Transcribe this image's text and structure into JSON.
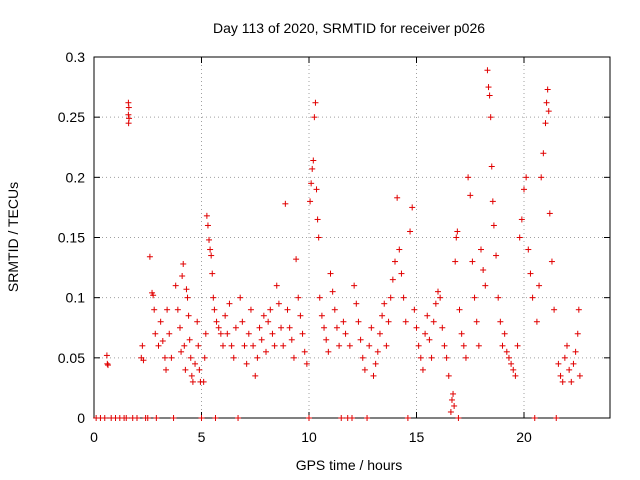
{
  "chart_data": {
    "type": "scatter",
    "title": "Day 113 of 2020, SRMTID for receiver p026",
    "xlabel": "GPS time / hours",
    "ylabel": "SRMTID / TECUs",
    "xlim": [
      0,
      24
    ],
    "ylim": [
      0,
      0.3
    ],
    "xticks": [
      0,
      5,
      10,
      15,
      20
    ],
    "xtick_labels": [
      "0",
      "5",
      "10",
      "15",
      "20"
    ],
    "yticks": [
      0,
      0.05,
      0.1,
      0.15,
      0.2,
      0.25,
      0.3
    ],
    "ytick_labels": [
      "0",
      "0.05",
      "0.1",
      "0.15",
      "0.2",
      "0.25",
      "0.3"
    ],
    "grid": true,
    "marker": "+",
    "color": "#e00000",
    "series": [
      {
        "name": "p026",
        "points": [
          [
            0.1,
            0
          ],
          [
            0.3,
            0
          ],
          [
            0.5,
            0
          ],
          [
            0.6,
            0.052
          ],
          [
            0.62,
            0.045
          ],
          [
            0.65,
            0.044
          ],
          [
            0.8,
            0
          ],
          [
            1.0,
            0
          ],
          [
            1.2,
            0
          ],
          [
            1.4,
            0
          ],
          [
            1.5,
            0
          ],
          [
            1.6,
            0.262
          ],
          [
            1.62,
            0.258
          ],
          [
            1.6,
            0.252
          ],
          [
            1.63,
            0.249
          ],
          [
            1.61,
            0.245
          ],
          [
            1.8,
            0
          ],
          [
            2.0,
            0
          ],
          [
            2.2,
            0.05
          ],
          [
            2.25,
            0.06
          ],
          [
            2.3,
            0.048
          ],
          [
            2.4,
            0
          ],
          [
            2.5,
            0
          ],
          [
            2.6,
            0.134
          ],
          [
            2.7,
            0.104
          ],
          [
            2.75,
            0.102
          ],
          [
            2.8,
            0.09
          ],
          [
            2.85,
            0.07
          ],
          [
            2.9,
            0
          ],
          [
            3.0,
            0.06
          ],
          [
            3.1,
            0.08
          ],
          [
            3.2,
            0.064
          ],
          [
            3.3,
            0.05
          ],
          [
            3.35,
            0.04
          ],
          [
            3.4,
            0.09
          ],
          [
            3.5,
            0.07
          ],
          [
            3.6,
            0.05
          ],
          [
            3.7,
            0
          ],
          [
            3.8,
            0.11
          ],
          [
            3.9,
            0.09
          ],
          [
            4.0,
            0.075
          ],
          [
            4.05,
            0.055
          ],
          [
            4.1,
            0.118
          ],
          [
            4.15,
            0.128
          ],
          [
            4.2,
            0.06
          ],
          [
            4.25,
            0.04
          ],
          [
            4.3,
            0.107
          ],
          [
            4.35,
            0.1
          ],
          [
            4.4,
            0.085
          ],
          [
            4.45,
            0.065
          ],
          [
            4.5,
            0.05
          ],
          [
            4.55,
            0.035
          ],
          [
            4.6,
            0.03
          ],
          [
            4.7,
            0.045
          ],
          [
            4.8,
            0.08
          ],
          [
            4.85,
            0.06
          ],
          [
            4.9,
            0.04
          ],
          [
            4.95,
            0.03
          ],
          [
            5.0,
            0
          ],
          [
            5.1,
            0.03
          ],
          [
            5.15,
            0.05
          ],
          [
            5.2,
            0.07
          ],
          [
            5.25,
            0.168
          ],
          [
            5.3,
            0.16
          ],
          [
            5.35,
            0.148
          ],
          [
            5.4,
            0.14
          ],
          [
            5.45,
            0.135
          ],
          [
            5.5,
            0.12
          ],
          [
            5.55,
            0.1
          ],
          [
            5.6,
            0.09
          ],
          [
            5.65,
            0
          ],
          [
            5.7,
            0.08
          ],
          [
            5.8,
            0.075
          ],
          [
            5.9,
            0.07
          ],
          [
            6.0,
            0.06
          ],
          [
            6.1,
            0.085
          ],
          [
            6.2,
            0.07
          ],
          [
            6.3,
            0.095
          ],
          [
            6.4,
            0.06
          ],
          [
            6.5,
            0.05
          ],
          [
            6.6,
            0.075
          ],
          [
            6.7,
            0
          ],
          [
            6.8,
            0.1
          ],
          [
            6.9,
            0.08
          ],
          [
            7.0,
            0.06
          ],
          [
            7.1,
            0.045
          ],
          [
            7.2,
            0.07
          ],
          [
            7.3,
            0.09
          ],
          [
            7.4,
            0.06
          ],
          [
            7.5,
            0.035
          ],
          [
            7.6,
            0.05
          ],
          [
            7.7,
            0.075
          ],
          [
            7.8,
            0.065
          ],
          [
            7.9,
            0.085
          ],
          [
            8.0,
            0.055
          ],
          [
            8.1,
            0.08
          ],
          [
            8.2,
            0.09
          ],
          [
            8.3,
            0.07
          ],
          [
            8.4,
            0.06
          ],
          [
            8.5,
            0.11
          ],
          [
            8.6,
            0.095
          ],
          [
            8.7,
            0.075
          ],
          [
            8.8,
            0.06
          ],
          [
            8.9,
            0.178
          ],
          [
            9.0,
            0.09
          ],
          [
            9.1,
            0.075
          ],
          [
            9.2,
            0.065
          ],
          [
            9.3,
            0.05
          ],
          [
            9.4,
            0.132
          ],
          [
            9.5,
            0.1
          ],
          [
            9.6,
            0.085
          ],
          [
            9.7,
            0.07
          ],
          [
            9.8,
            0.055
          ],
          [
            9.9,
            0.045
          ],
          [
            10.0,
            0
          ],
          [
            10.05,
            0.18
          ],
          [
            10.1,
            0.195
          ],
          [
            10.15,
            0.207
          ],
          [
            10.2,
            0.214
          ],
          [
            10.25,
            0.25
          ],
          [
            10.3,
            0.262
          ],
          [
            10.35,
            0.19
          ],
          [
            10.4,
            0.165
          ],
          [
            10.45,
            0.15
          ],
          [
            10.5,
            0.1
          ],
          [
            10.6,
            0.085
          ],
          [
            10.7,
            0.075
          ],
          [
            10.8,
            0.065
          ],
          [
            10.9,
            0.055
          ],
          [
            11.0,
            0.12
          ],
          [
            11.1,
            0.105
          ],
          [
            11.2,
            0.09
          ],
          [
            11.3,
            0.075
          ],
          [
            11.4,
            0.06
          ],
          [
            11.5,
            0
          ],
          [
            11.6,
            0.08
          ],
          [
            11.7,
            0.07
          ],
          [
            11.8,
            0
          ],
          [
            11.9,
            0.06
          ],
          [
            12.0,
            0
          ],
          [
            12.1,
            0.11
          ],
          [
            12.2,
            0.095
          ],
          [
            12.3,
            0.08
          ],
          [
            12.4,
            0.065
          ],
          [
            12.5,
            0.05
          ],
          [
            12.6,
            0.04
          ],
          [
            12.7,
            0
          ],
          [
            12.8,
            0.06
          ],
          [
            12.9,
            0.075
          ],
          [
            13.0,
            0.035
          ],
          [
            13.1,
            0.045
          ],
          [
            13.2,
            0.055
          ],
          [
            13.3,
            0.07
          ],
          [
            13.4,
            0.085
          ],
          [
            13.5,
            0.095
          ],
          [
            13.6,
            0.06
          ],
          [
            13.7,
            0.08
          ],
          [
            13.8,
            0.1
          ],
          [
            13.9,
            0.115
          ],
          [
            14.0,
            0.13
          ],
          [
            14.1,
            0.183
          ],
          [
            14.2,
            0.14
          ],
          [
            14.3,
            0.12
          ],
          [
            14.4,
            0.1
          ],
          [
            14.5,
            0.08
          ],
          [
            14.6,
            0
          ],
          [
            14.7,
            0.155
          ],
          [
            14.8,
            0.175
          ],
          [
            14.9,
            0.09
          ],
          [
            15.0,
            0.075
          ],
          [
            15.1,
            0.06
          ],
          [
            15.2,
            0.05
          ],
          [
            15.3,
            0.04
          ],
          [
            15.4,
            0.07
          ],
          [
            15.5,
            0.085
          ],
          [
            15.6,
            0.065
          ],
          [
            15.7,
            0.05
          ],
          [
            15.8,
            0.08
          ],
          [
            15.9,
            0.095
          ],
          [
            16.0,
            0.105
          ],
          [
            16.1,
            0.1
          ],
          [
            16.2,
            0.075
          ],
          [
            16.3,
            0.06
          ],
          [
            16.4,
            0.05
          ],
          [
            16.5,
            0.035
          ],
          [
            16.6,
            0.005
          ],
          [
            16.65,
            0.015
          ],
          [
            16.7,
            0.02
          ],
          [
            16.75,
            0.01
          ],
          [
            16.8,
            0.13
          ],
          [
            16.85,
            0.15
          ],
          [
            16.9,
            0.155
          ],
          [
            16.95,
            0
          ],
          [
            17.0,
            0.09
          ],
          [
            17.1,
            0.07
          ],
          [
            17.2,
            0.06
          ],
          [
            17.3,
            0.05
          ],
          [
            17.4,
            0.2
          ],
          [
            17.5,
            0.185
          ],
          [
            17.6,
            0.13
          ],
          [
            17.7,
            0.1
          ],
          [
            17.8,
            0.08
          ],
          [
            17.9,
            0.06
          ],
          [
            18.0,
            0.14
          ],
          [
            18.1,
            0.123
          ],
          [
            18.2,
            0.11
          ],
          [
            18.3,
            0.289
          ],
          [
            18.35,
            0.275
          ],
          [
            18.4,
            0.268
          ],
          [
            18.45,
            0.25
          ],
          [
            18.5,
            0.209
          ],
          [
            18.55,
            0.18
          ],
          [
            18.6,
            0.16
          ],
          [
            18.7,
            0.135
          ],
          [
            18.8,
            0.1
          ],
          [
            18.9,
            0.08
          ],
          [
            19.0,
            0.06
          ],
          [
            19.1,
            0.07
          ],
          [
            19.2,
            0.055
          ],
          [
            19.3,
            0.05
          ],
          [
            19.4,
            0.045
          ],
          [
            19.5,
            0.04
          ],
          [
            19.6,
            0.035
          ],
          [
            19.7,
            0.06
          ],
          [
            19.8,
            0.15
          ],
          [
            19.9,
            0.165
          ],
          [
            20.0,
            0.19
          ],
          [
            20.1,
            0.2
          ],
          [
            20.2,
            0.14
          ],
          [
            20.3,
            0.12
          ],
          [
            20.4,
            0.1
          ],
          [
            20.5,
            0
          ],
          [
            20.6,
            0.08
          ],
          [
            20.7,
            0.11
          ],
          [
            20.8,
            0.2
          ],
          [
            20.9,
            0.22
          ],
          [
            21.0,
            0.245
          ],
          [
            21.05,
            0.262
          ],
          [
            21.1,
            0.273
          ],
          [
            21.15,
            0.255
          ],
          [
            21.2,
            0.17
          ],
          [
            21.3,
            0.13
          ],
          [
            21.4,
            0.09
          ],
          [
            21.5,
            0
          ],
          [
            21.6,
            0.045
          ],
          [
            21.7,
            0.035
          ],
          [
            21.8,
            0.03
          ],
          [
            21.9,
            0.05
          ],
          [
            22.0,
            0.06
          ],
          [
            22.1,
            0.04
          ],
          [
            22.2,
            0.03
          ],
          [
            22.3,
            0.045
          ],
          [
            22.4,
            0.055
          ],
          [
            22.5,
            0.07
          ],
          [
            22.55,
            0.09
          ],
          [
            22.6,
            0.035
          ]
        ]
      }
    ]
  }
}
